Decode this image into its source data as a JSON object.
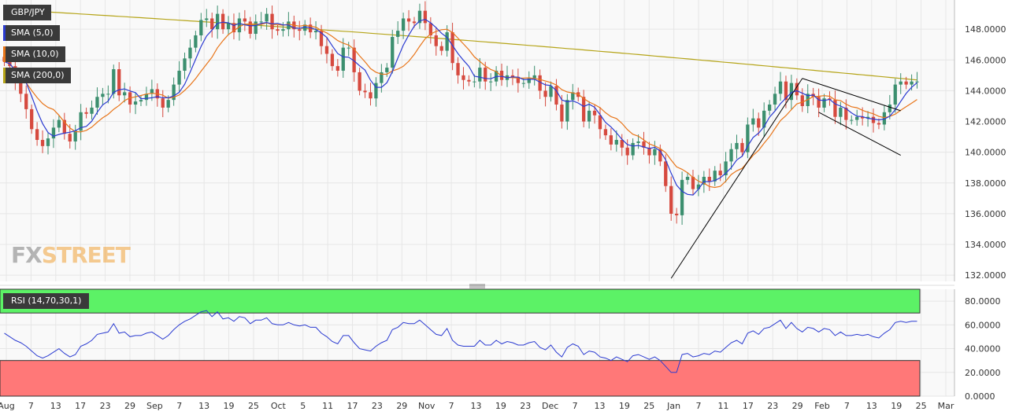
{
  "instrument": "GBP/JPY",
  "watermark": {
    "fx": "FX",
    "street": "STREET"
  },
  "legend": [
    {
      "label": "SMA (5,0)",
      "color": "#2b3bd1"
    },
    {
      "label": "SMA (10,0)",
      "color": "#e8761b"
    },
    {
      "label": "SMA (200,0)",
      "color": "#b5a418"
    }
  ],
  "colors": {
    "up": "#3c8f6f",
    "down": "#d64a3f",
    "grid": "#e6e6e6",
    "bg": "#f9f9f9",
    "trendline": "#000000",
    "rsi": "#2b3bd1",
    "overbought": "#5cf266",
    "oversold": "#ff7878"
  },
  "chart_data": [
    {
      "type": "candlestick",
      "title": "GBP/JPY",
      "y_ticks": [
        "148.0000",
        "146.0000",
        "144.0000",
        "142.0000",
        "140.0000",
        "138.0000",
        "136.0000",
        "134.0000",
        "132.0000"
      ],
      "ylim": [
        131.6,
        149.9
      ],
      "x_ticks": [
        "Aug",
        "7",
        "13",
        "17",
        "23",
        "29",
        "Sep",
        "7",
        "13",
        "19",
        "25",
        "Oct",
        "5",
        "11",
        "17",
        "23",
        "29",
        "Nov",
        "7",
        "13",
        "19",
        "23",
        "Dec",
        "7",
        "13",
        "19",
        "25",
        "Jan",
        "7",
        "11",
        "17",
        "23",
        "29",
        "Feb",
        "7",
        "13",
        "19",
        "25",
        "Mar"
      ],
      "close": [
        145.9,
        145.6,
        144.5,
        143.8,
        142.8,
        141.5,
        140.8,
        140.4,
        140.9,
        141.6,
        142.1,
        141.2,
        140.7,
        141.4,
        142.6,
        142.5,
        142.9,
        143.6,
        143.8,
        143.8,
        145.4,
        143.7,
        143.9,
        143.1,
        143.3,
        143.4,
        143.8,
        144.1,
        143.5,
        142.9,
        143.4,
        144.4,
        145.3,
        146.1,
        146.8,
        147.6,
        148.6,
        148.7,
        148.0,
        149.0,
        148.0,
        148.4,
        147.8,
        148.7,
        148.5,
        147.7,
        148.5,
        148.5,
        149.0,
        148.0,
        147.9,
        148.0,
        148.5,
        148.0,
        147.9,
        148.3,
        147.8,
        147.9,
        146.9,
        146.4,
        145.6,
        145.3,
        146.8,
        146.8,
        145.2,
        144.0,
        143.9,
        143.5,
        144.5,
        145.2,
        145.5,
        147.5,
        147.9,
        148.7,
        148.5,
        148.4,
        149.2,
        148.4,
        147.6,
        146.9,
        146.6,
        147.8,
        145.8,
        145.0,
        144.7,
        144.6,
        144.6,
        145.5,
        144.6,
        144.6,
        145.3,
        144.7,
        145.0,
        144.9,
        144.5,
        144.5,
        144.8,
        145.0,
        144.0,
        143.6,
        144.3,
        143.1,
        142.0,
        143.4,
        143.9,
        143.6,
        142.0,
        142.7,
        142.4,
        141.5,
        141.1,
        140.5,
        140.8,
        140.3,
        139.8,
        140.6,
        140.7,
        140.3,
        139.8,
        140.2,
        139.4,
        137.8,
        136.0,
        135.9,
        138.2,
        138.4,
        137.6,
        137.9,
        138.4,
        138.1,
        138.8,
        138.5,
        139.4,
        140.2,
        140.6,
        140.0,
        141.8,
        142.2,
        141.6,
        142.7,
        143.1,
        143.8,
        144.6,
        143.4,
        144.5,
        143.7,
        143.0,
        143.8,
        143.6,
        142.9,
        143.5,
        143.4,
        142.3,
        142.9,
        142.1,
        142.1,
        142.3,
        142.2,
        142.3,
        141.9,
        141.8,
        142.6,
        143.1,
        144.4,
        144.6,
        144.4,
        144.6,
        144.6
      ]
    },
    {
      "type": "line",
      "title": "RSI (14,70,30,1)",
      "y_ticks": [
        "80.0000",
        "60.0000",
        "40.0000",
        "20.0000",
        "0.0000"
      ],
      "ylim": [
        0,
        90
      ],
      "overbought": 70,
      "oversold": 30,
      "values": [
        53,
        50,
        47,
        45,
        42,
        38,
        34,
        32,
        34,
        37,
        40,
        36,
        33,
        35,
        42,
        44,
        47,
        52,
        53,
        54,
        61,
        53,
        54,
        50,
        51,
        51,
        53,
        54,
        51,
        48,
        51,
        56,
        60,
        63,
        65,
        68,
        71,
        72,
        67,
        71,
        65,
        66,
        63,
        67,
        66,
        61,
        64,
        64,
        66,
        61,
        60,
        60,
        62,
        60,
        59,
        60,
        58,
        58,
        53,
        50,
        46,
        44,
        51,
        51,
        45,
        40,
        39,
        38,
        42,
        45,
        47,
        56,
        58,
        62,
        61,
        61,
        64,
        60,
        56,
        52,
        51,
        57,
        47,
        43,
        42,
        42,
        42,
        47,
        43,
        43,
        47,
        44,
        46,
        45,
        43,
        43,
        45,
        46,
        41,
        39,
        43,
        37,
        33,
        41,
        44,
        42,
        35,
        38,
        37,
        33,
        32,
        30,
        33,
        31,
        29,
        34,
        35,
        33,
        31,
        33,
        30,
        25,
        20,
        20,
        35,
        36,
        33,
        34,
        36,
        35,
        38,
        37,
        41,
        45,
        47,
        44,
        53,
        55,
        52,
        57,
        58,
        61,
        64,
        57,
        62,
        57,
        54,
        58,
        57,
        54,
        57,
        56,
        51,
        54,
        51,
        51,
        52,
        51,
        52,
        50,
        49,
        53,
        56,
        62,
        63,
        62,
        63,
        63
      ]
    }
  ]
}
